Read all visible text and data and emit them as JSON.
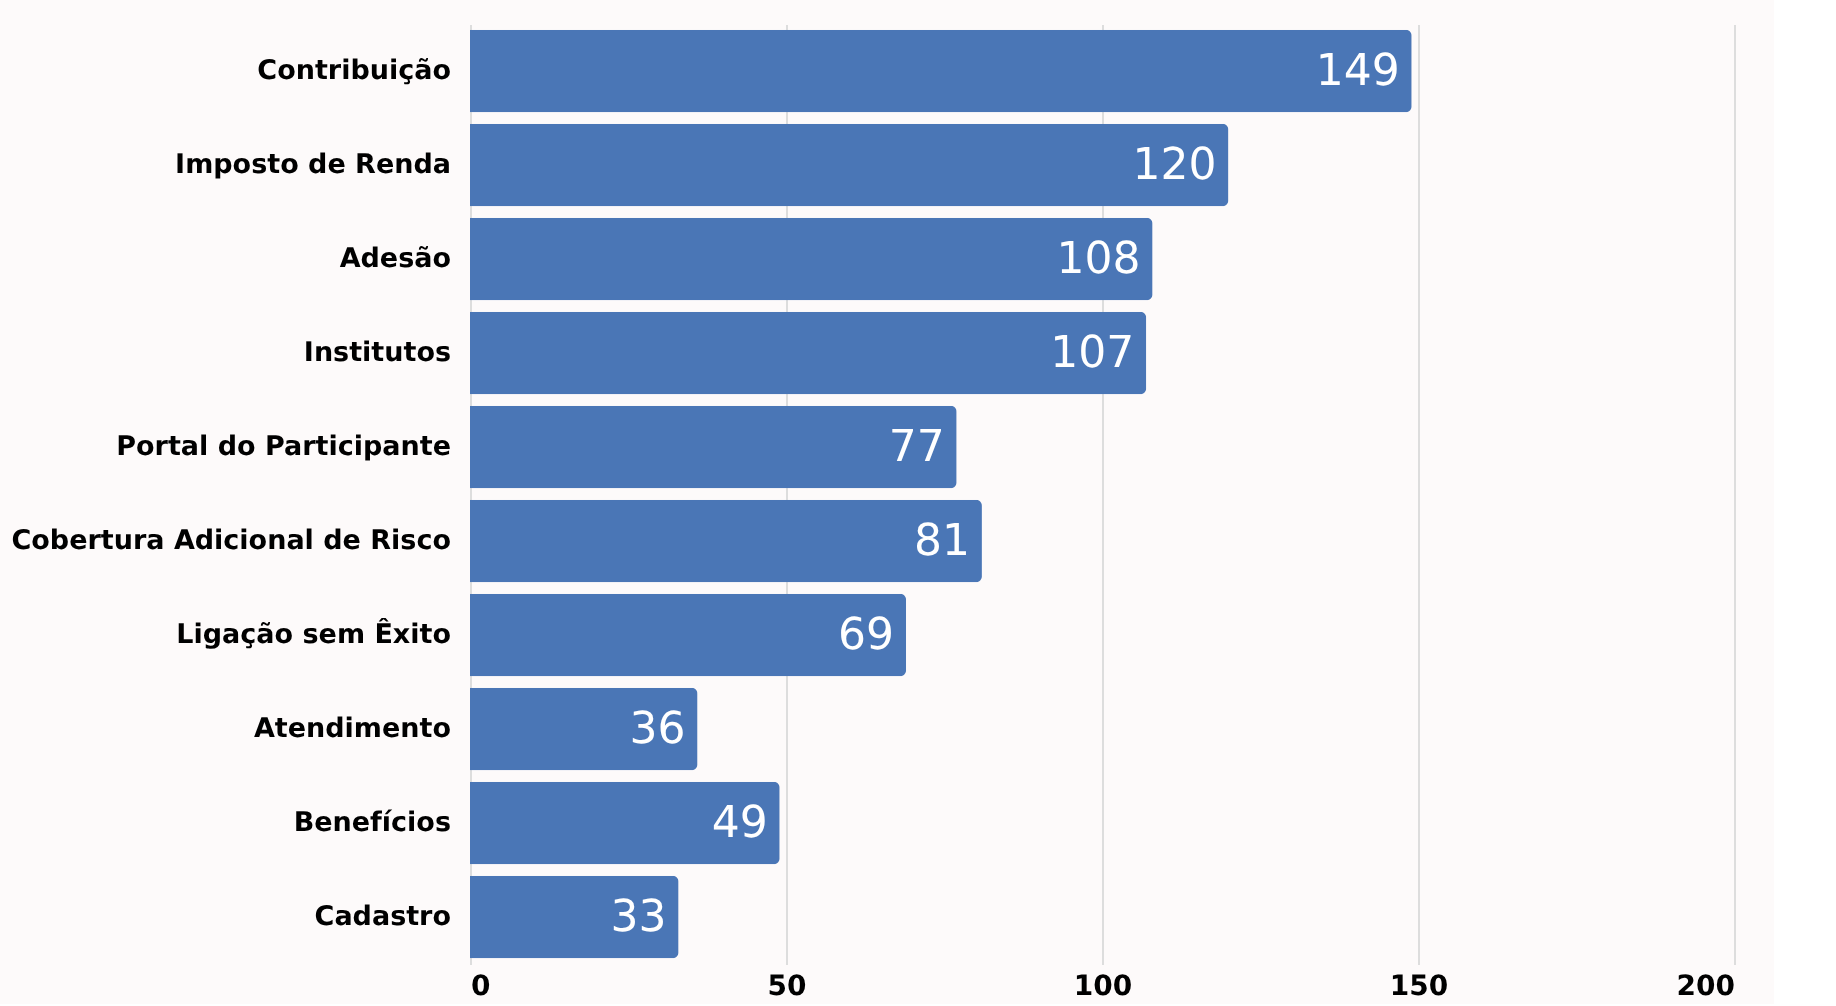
{
  "chart_data": {
    "type": "bar",
    "orientation": "horizontal",
    "categories": [
      "Contribuição",
      "Imposto de Renda",
      "Adesão",
      "Institutos",
      "Portal do Participante",
      "Cobertura Adicional de Risco",
      "Ligação sem Êxito",
      "Atendimento",
      "Benefícios",
      "Cadastro"
    ],
    "values": [
      149,
      120,
      108,
      107,
      77,
      81,
      69,
      36,
      49,
      33
    ],
    "color": "#4a76b6",
    "xlim": [
      0,
      200
    ],
    "xticks": [
      0,
      50,
      100,
      150,
      200
    ],
    "grid": "x",
    "data_labels": true
  }
}
